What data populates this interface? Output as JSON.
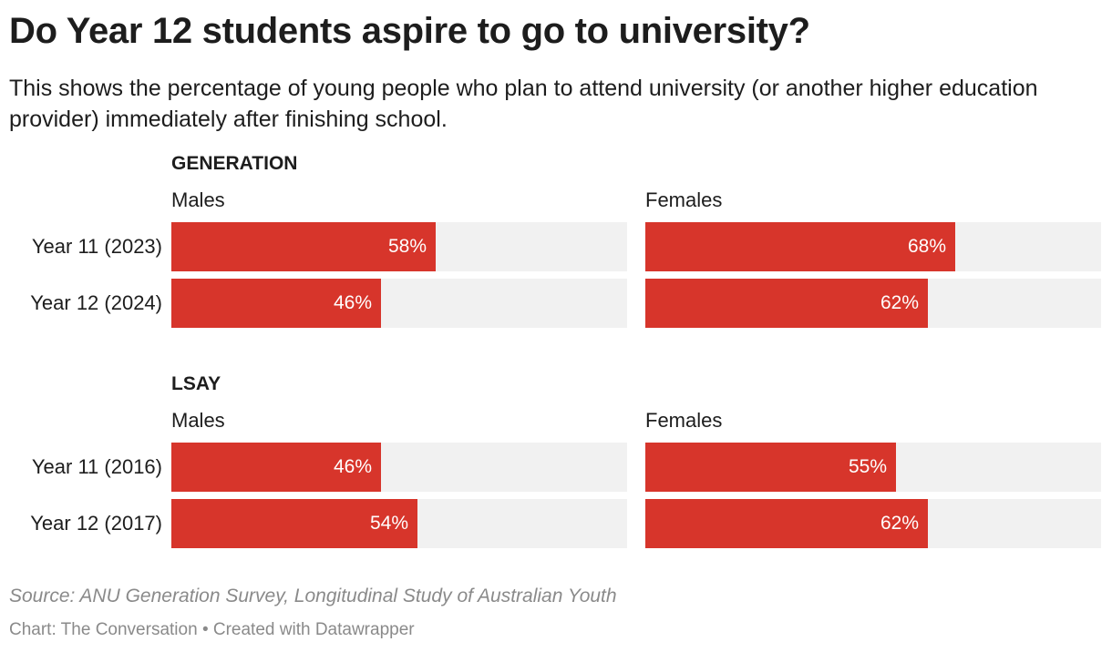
{
  "header": {
    "title": "Do Year 12 students aspire to go to university?",
    "subtitle": "This shows the percentage of young people who plan to attend university (or another higher education provider) immediately after finishing school."
  },
  "footer": {
    "source": "Source: ANU Generation Survey, Longitudinal Study of Australian Youth",
    "credit_prefix": "Chart: The Conversation",
    "credit_separator": "•",
    "credit_suffix": "Created with Datawrapper"
  },
  "colors": {
    "bar": "#d7352b",
    "track": "#f1f1f1",
    "text": "#1d1d1d",
    "muted": "#8a8a8a"
  },
  "chart_data": {
    "type": "bar",
    "orientation": "horizontal",
    "unit": "%",
    "xlim": [
      0,
      100
    ],
    "groups": [
      {
        "name": "GENERATION",
        "categories": [
          "Year 11 (2023)",
          "Year 12 (2024)"
        ],
        "series": [
          {
            "name": "Males",
            "values": [
              58,
              46
            ],
            "labels": [
              "58%",
              "46%"
            ]
          },
          {
            "name": "Females",
            "values": [
              68,
              62
            ],
            "labels": [
              "68%",
              "62%"
            ]
          }
        ]
      },
      {
        "name": "LSAY",
        "categories": [
          "Year 11 (2016)",
          "Year 12 (2017)"
        ],
        "series": [
          {
            "name": "Males",
            "values": [
              46,
              54
            ],
            "labels": [
              "46%",
              "54%"
            ]
          },
          {
            "name": "Females",
            "values": [
              55,
              62
            ],
            "labels": [
              "55%",
              "62%"
            ]
          }
        ]
      }
    ]
  }
}
